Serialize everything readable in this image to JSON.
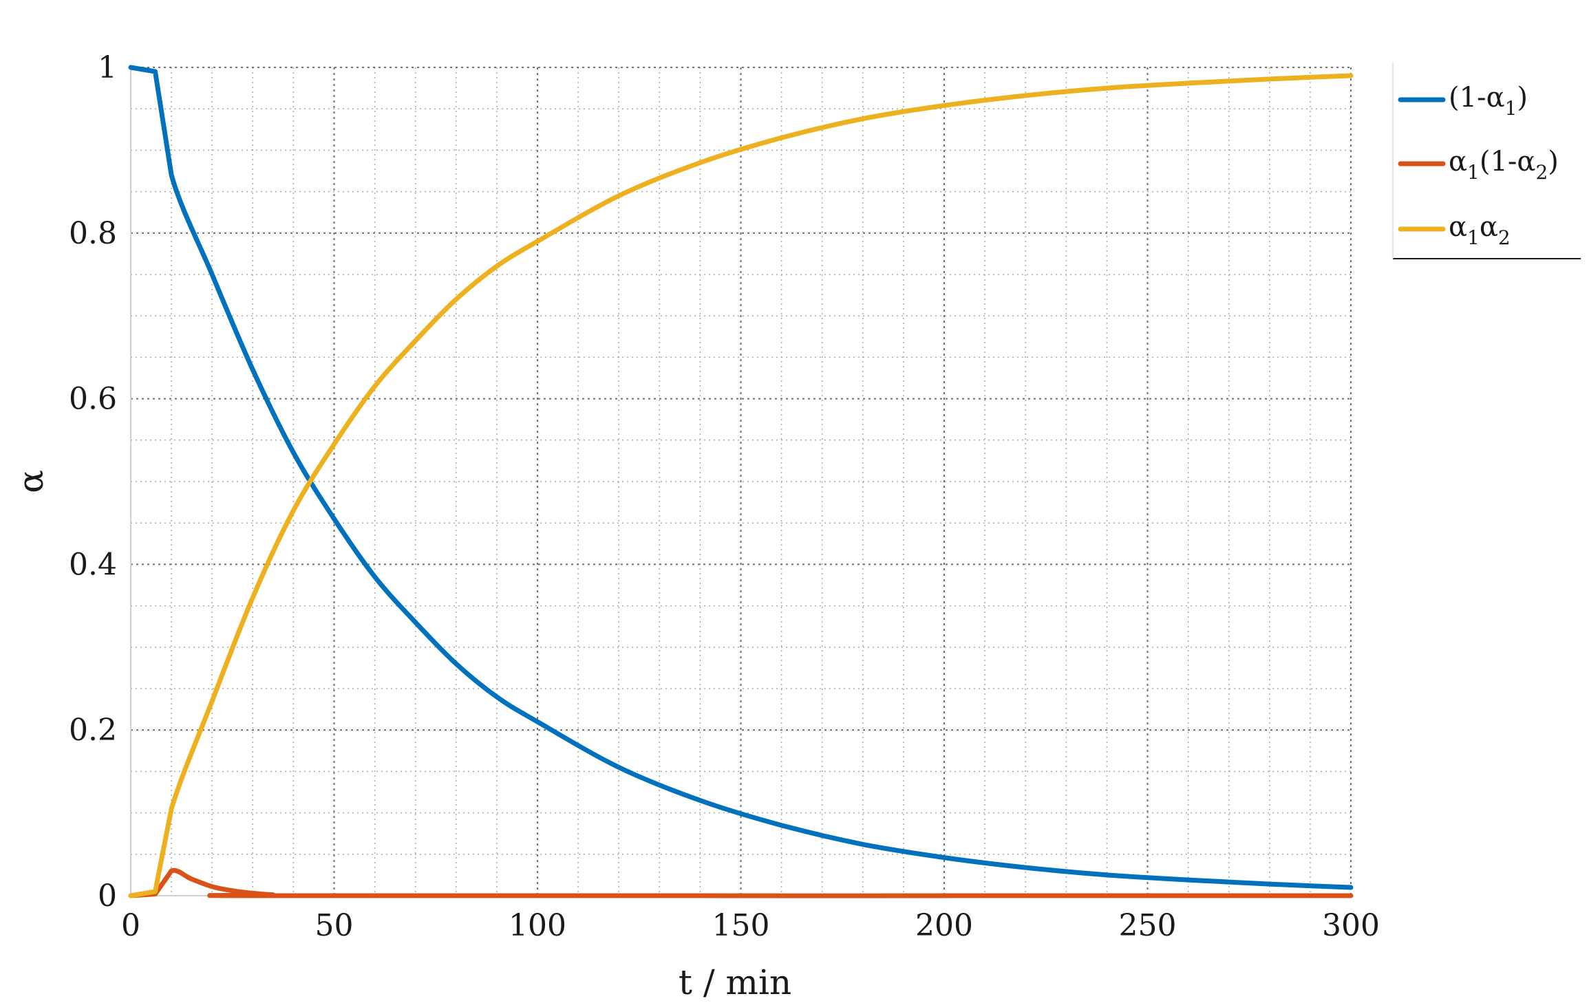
{
  "chart_data": {
    "type": "line",
    "xlabel": "t / min",
    "ylabel": "α",
    "xlim": [
      0,
      300
    ],
    "ylim": [
      0,
      1
    ],
    "xticks": [
      "0",
      "50",
      "100",
      "150",
      "200",
      "250",
      "300"
    ],
    "yticks": [
      "0",
      "0.2",
      "0.4",
      "0.6",
      "0.8",
      "1"
    ],
    "grid": "major and minor, dotted",
    "legend_position": "outside-right-top",
    "legend": [
      {
        "main": "(1-α",
        "sub": "1",
        "tail": ")"
      },
      {
        "main": "α",
        "sub": "1",
        "mid": "(1-α",
        "sub2": "2",
        "tail": ")"
      },
      {
        "main": "α",
        "sub": "1",
        "mid": "α",
        "sub2": "2",
        "tail": ""
      }
    ],
    "series": [
      {
        "legend_index": 0,
        "color": "#0072BD",
        "x": [
          0,
          6,
          10,
          20,
          30,
          40,
          50,
          60,
          70,
          80,
          90,
          100,
          120,
          140,
          160,
          180,
          200,
          220,
          240,
          260,
          280,
          300
        ],
        "y": [
          1.0,
          0.995,
          0.87,
          0.75,
          0.635,
          0.535,
          0.455,
          0.385,
          0.33,
          0.28,
          0.24,
          0.21,
          0.155,
          0.115,
          0.085,
          0.062,
          0.046,
          0.034,
          0.025,
          0.019,
          0.014,
          0.01
        ]
      },
      {
        "legend_index": 1,
        "color": "#D95319",
        "x": [
          0,
          6,
          10,
          15,
          20,
          25,
          30,
          35,
          40,
          300
        ],
        "y": [
          0.0,
          0.002,
          0.03,
          0.02,
          0.011,
          0.006,
          0.003,
          0.001,
          0.0,
          0.0
        ]
      },
      {
        "legend_index": 2,
        "color": "#EDB120",
        "x": [
          0,
          6,
          10,
          20,
          30,
          40,
          50,
          60,
          70,
          80,
          90,
          100,
          120,
          140,
          160,
          180,
          200,
          220,
          240,
          260,
          280,
          300
        ],
        "y": [
          0.0,
          0.005,
          0.105,
          0.235,
          0.36,
          0.465,
          0.545,
          0.615,
          0.67,
          0.72,
          0.76,
          0.79,
          0.845,
          0.885,
          0.915,
          0.938,
          0.954,
          0.966,
          0.975,
          0.981,
          0.986,
          0.99
        ]
      }
    ]
  }
}
